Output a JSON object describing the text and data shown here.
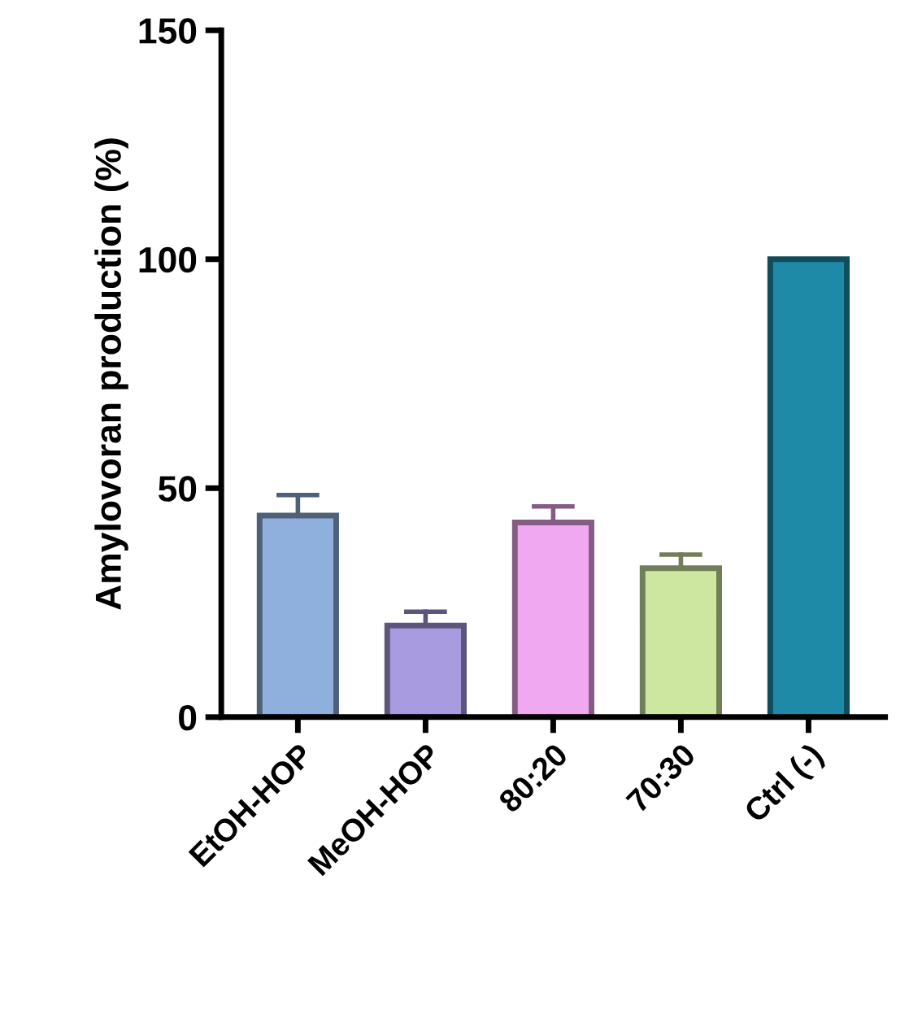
{
  "chart_data": {
    "type": "bar",
    "ylabel": "Amylovoran production (%)",
    "categories": [
      "EtOH-HOP",
      "MeOH-HOP",
      "80:20",
      "70:30",
      "Ctrl (-)"
    ],
    "values": [
      44,
      20,
      42.5,
      32.5,
      100
    ],
    "errors": [
      [
        44,
        48.5
      ],
      [
        20,
        23
      ],
      [
        42.5,
        46
      ],
      [
        32.5,
        35.5
      ],
      null
    ],
    "colors": [
      "#8fb0dc",
      "#a99be0",
      "#f0a8f0",
      "#cde6a0",
      "#1f8aa8"
    ],
    "ylim": [
      0,
      150
    ],
    "yticks": [
      0,
      50,
      100,
      150
    ],
    "grid": false
  }
}
